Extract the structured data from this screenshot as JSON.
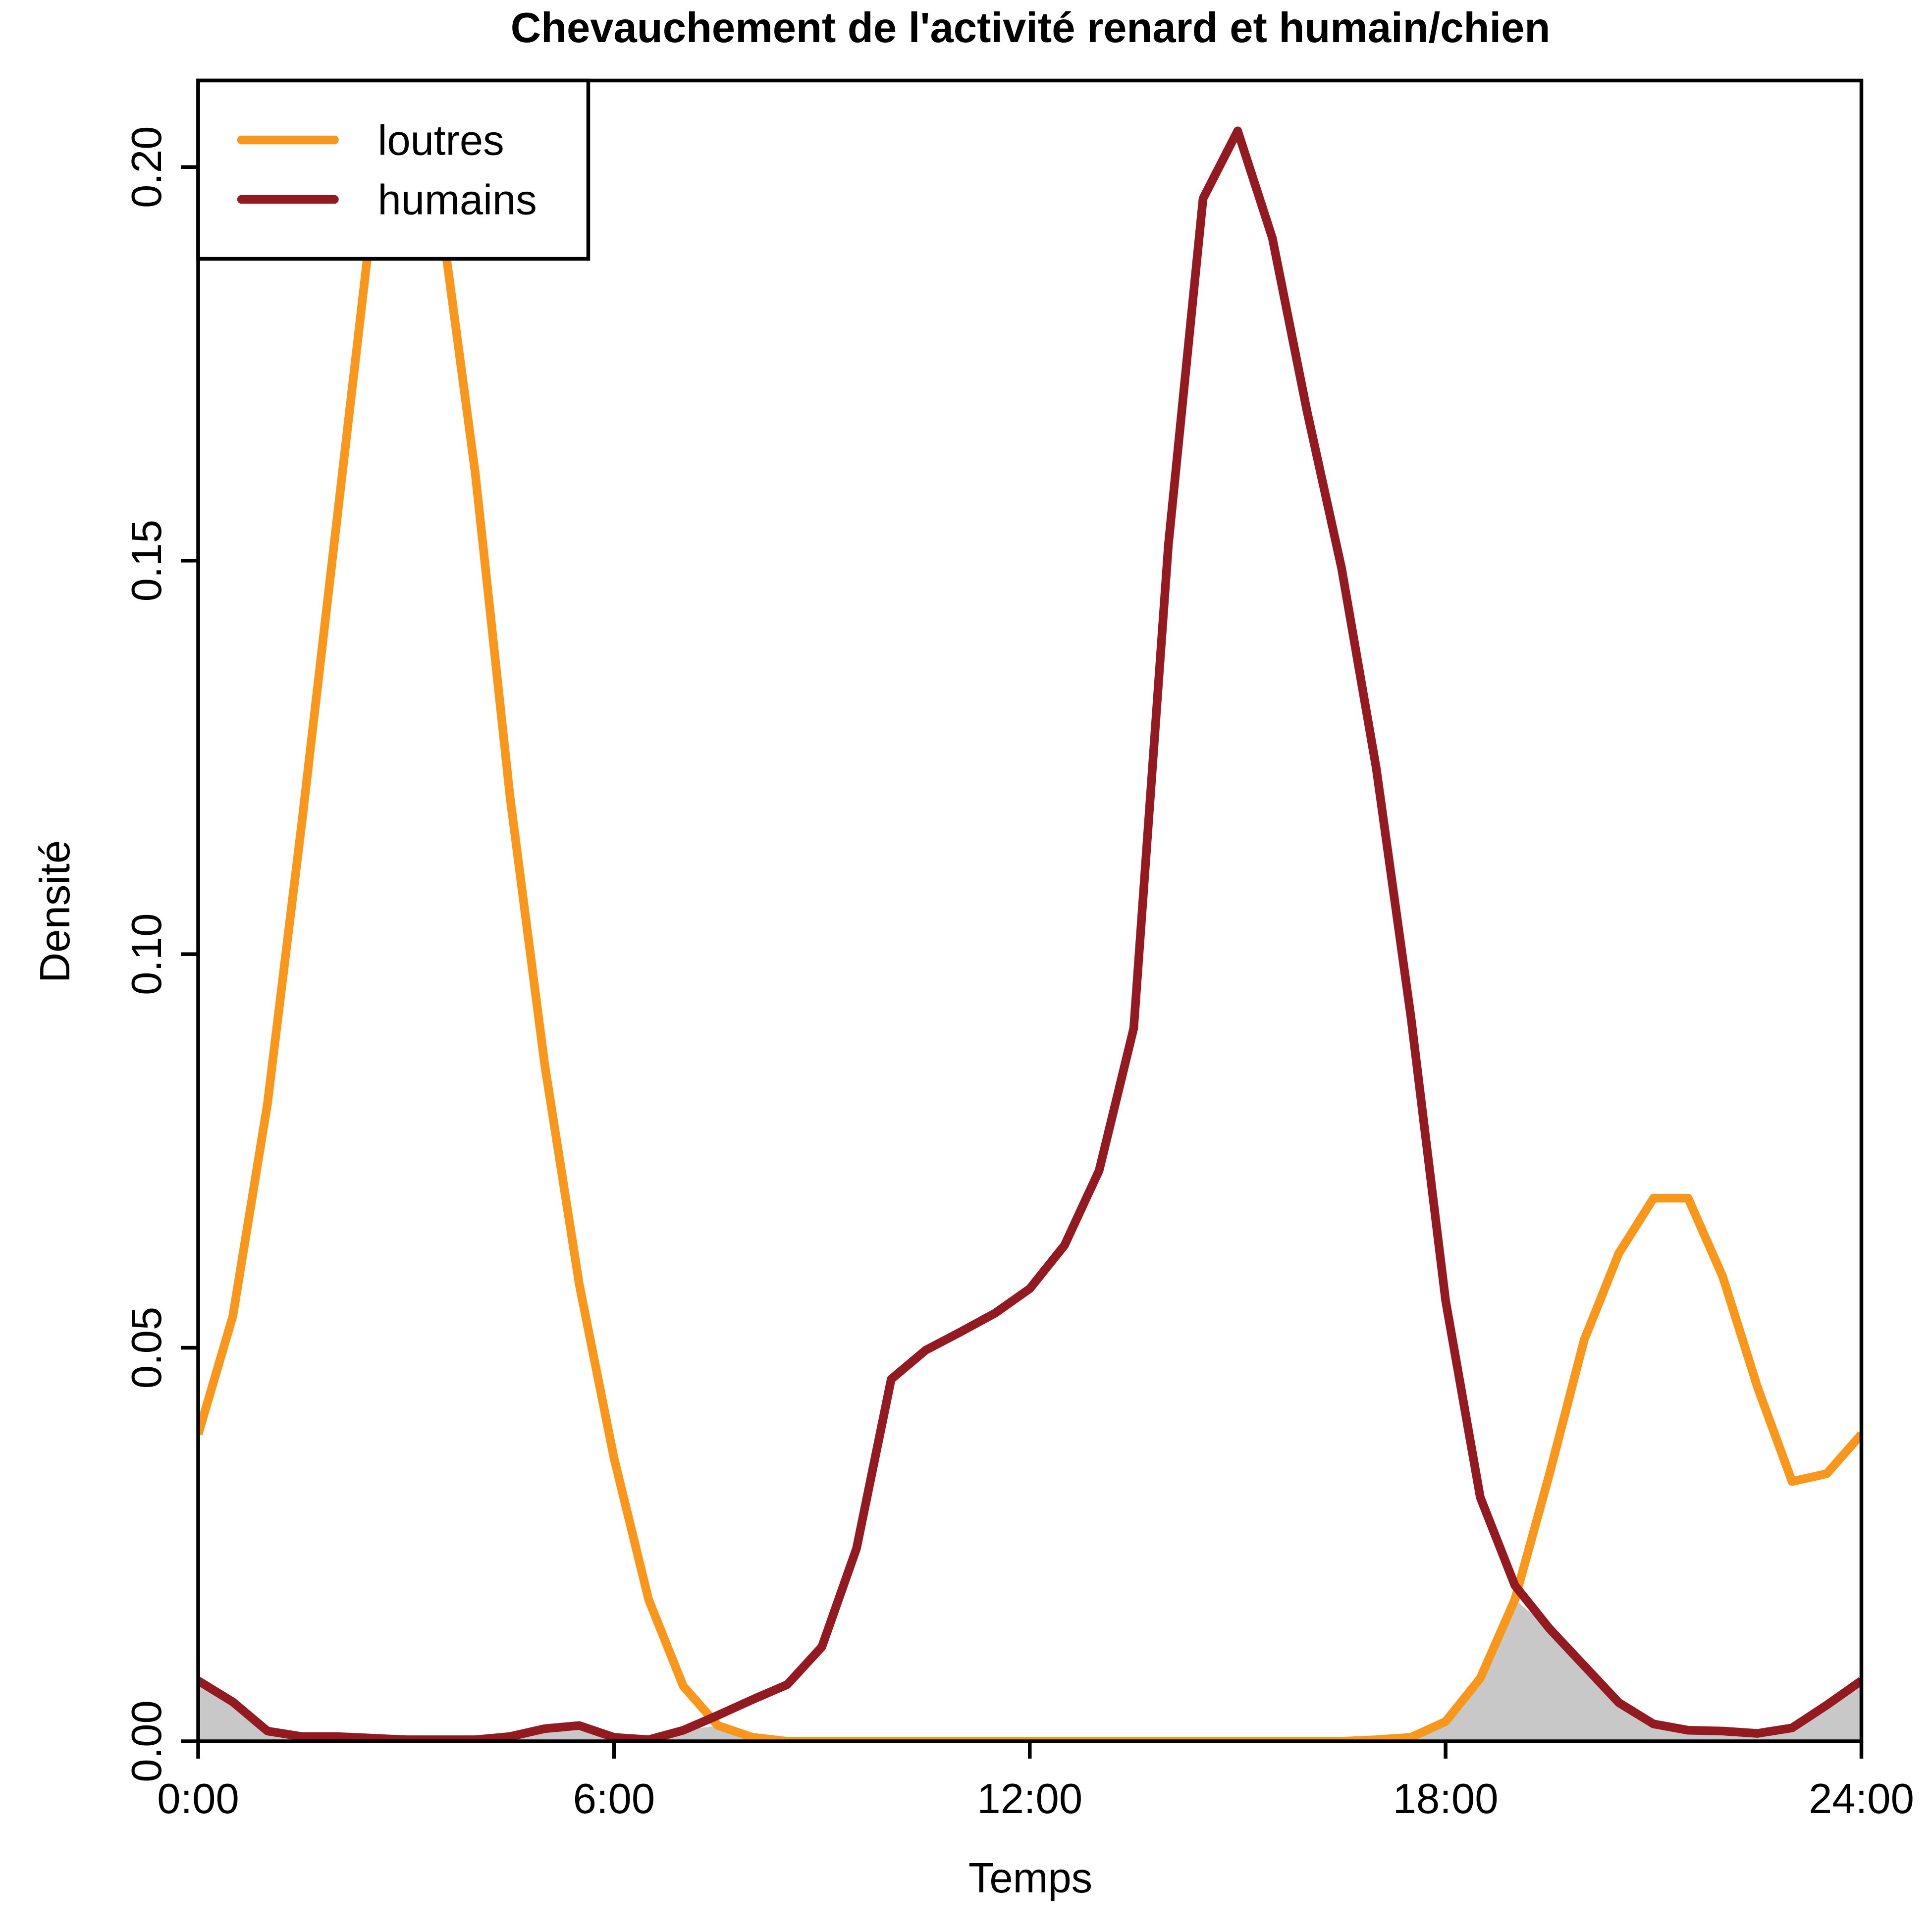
{
  "chart_data": {
    "type": "line",
    "title": "Chevauchement de l'activité renard et humain/chien",
    "x_label": "Temps",
    "y_label": "Densité",
    "x": [
      0,
      0.5,
      1,
      1.5,
      2,
      2.5,
      3,
      3.5,
      4,
      4.5,
      5,
      5.5,
      6,
      6.5,
      7,
      7.5,
      8,
      8.5,
      9,
      9.5,
      10,
      10.5,
      11,
      11.5,
      12,
      12.5,
      13,
      13.5,
      14,
      14.5,
      15,
      15.5,
      16,
      16.5,
      17,
      17.5,
      18,
      18.5,
      19,
      19.5,
      20,
      20.5,
      21,
      21.5,
      22,
      22.5,
      23,
      23.5,
      24
    ],
    "series": [
      {
        "name": "loutres",
        "color": "#f8971b",
        "values": [
          0.039,
          0.054,
          0.081,
          0.117,
          0.155,
          0.193,
          0.22,
          0.194,
          0.161,
          0.12,
          0.086,
          0.058,
          0.036,
          0.018,
          0.007,
          0.002,
          0.0005,
          0,
          0,
          0,
          0,
          0,
          0,
          0,
          0,
          0,
          0,
          0,
          0,
          0,
          0,
          0,
          0,
          0,
          0.0002,
          0.0005,
          0.0025,
          0.008,
          0.018,
          0.034,
          0.051,
          0.062,
          0.069,
          0.069,
          0.059,
          0.045,
          0.033,
          0.034,
          0.039
        ]
      },
      {
        "name": "humains",
        "color": "#941a21",
        "values": [
          0.0077,
          0.005,
          0.0013,
          0.0006,
          0.0006,
          0.0004,
          0.0002,
          0.0002,
          0.0002,
          0.0006,
          0.0016,
          0.002,
          0.0005,
          0.0002,
          0.0014,
          0.0033,
          0.0053,
          0.0072,
          0.012,
          0.0245,
          0.046,
          0.0497,
          0.052,
          0.0544,
          0.0575,
          0.063,
          0.0725,
          0.0906,
          0.152,
          0.196,
          0.2046,
          0.191,
          0.169,
          0.149,
          0.1236,
          0.092,
          0.056,
          0.031,
          0.0198,
          0.0143,
          0.0096,
          0.0049,
          0.0022,
          0.0014,
          0.0013,
          0.001,
          0.0017,
          0.0046,
          0.0077
        ]
      }
    ],
    "overlap_color": "#c8c8c8",
    "xlim": [
      0,
      24
    ],
    "xticks": [
      {
        "value": 0,
        "label": "0:00"
      },
      {
        "value": 6,
        "label": "6:00"
      },
      {
        "value": 12,
        "label": "12:00"
      },
      {
        "value": 18,
        "label": "18:00"
      },
      {
        "value": 24,
        "label": "24:00"
      }
    ],
    "ylim": [
      0,
      0.211
    ],
    "yticks": [
      {
        "value": 0,
        "label": "0.00"
      },
      {
        "value": 0.05,
        "label": "0.05"
      },
      {
        "value": 0.1,
        "label": "0.10"
      },
      {
        "value": 0.15,
        "label": "0.15"
      },
      {
        "value": 0.2,
        "label": "0.20"
      }
    ],
    "legend": "top-left"
  }
}
